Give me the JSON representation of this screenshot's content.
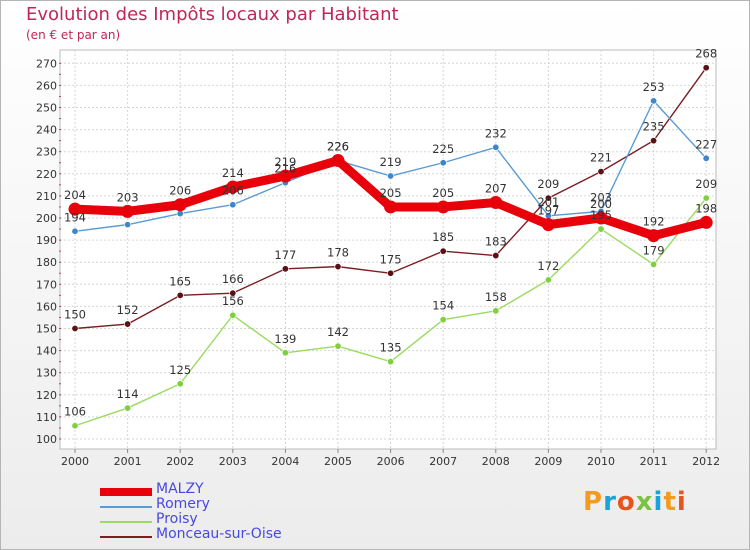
{
  "title": "Evolution des Impôts locaux par Habitant",
  "subtitle": "(en € et par an)",
  "logo": "Proxiti",
  "chart_data": {
    "type": "line",
    "title": "Evolution des Impôts locaux par Habitant",
    "subtitle": "(en € et par an)",
    "x": [
      "2000",
      "2001",
      "2002",
      "2003",
      "2004",
      "2005",
      "2006",
      "2007",
      "2008",
      "2009",
      "2010",
      "2011",
      "2012"
    ],
    "ylim": [
      100,
      270
    ],
    "yticks": [
      100,
      110,
      120,
      130,
      140,
      150,
      160,
      170,
      180,
      190,
      200,
      210,
      220,
      230,
      240,
      250,
      260,
      270
    ],
    "grid": true,
    "legend_position": "bottom-left",
    "series": [
      {
        "name": "MALZY",
        "color": "#e8000b",
        "values": [
          204,
          203,
          206,
          214,
          219,
          226,
          205,
          205,
          207,
          197,
          200,
          192,
          198
        ]
      },
      {
        "name": "Romery",
        "color": "#5b9bd5",
        "values": [
          194,
          197,
          202,
          206,
          216,
          226,
          219,
          225,
          232,
          201,
          203,
          253,
          227
        ]
      },
      {
        "name": "Proisy",
        "color": "#9adb60",
        "values": [
          106,
          114,
          125,
          156,
          139,
          142,
          135,
          154,
          158,
          172,
          195,
          179,
          209
        ]
      },
      {
        "name": "Monceau-sur-Oise",
        "color": "#7b1e22",
        "values": [
          150,
          152,
          165,
          166,
          177,
          178,
          175,
          185,
          183,
          209,
          221,
          235,
          268
        ]
      }
    ],
    "data_labels": {
      "MALZY": [
        "204",
        "203",
        "206",
        "214",
        "219",
        "226",
        "205",
        "205",
        "207",
        "197",
        "200",
        "192",
        "198"
      ],
      "Romery": [
        "194",
        "",
        "",
        "206",
        "216",
        "226",
        "219",
        "225",
        "232",
        "201",
        "203",
        "253",
        "227"
      ],
      "Proisy": [
        "106",
        "114",
        "125",
        "156",
        "139",
        "142",
        "135",
        "154",
        "158",
        "172",
        "195",
        "179",
        "209"
      ],
      "Monceau-sur-Oise": [
        "150",
        "152",
        "165",
        "166",
        "177",
        "178",
        "175",
        "185",
        "183",
        "209",
        "221",
        "235",
        "268"
      ]
    }
  }
}
